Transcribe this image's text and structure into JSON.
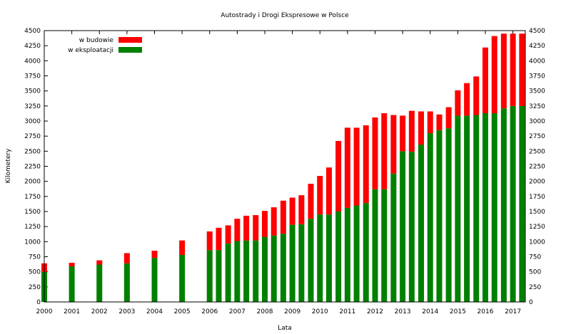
{
  "chart_data": {
    "type": "bar",
    "stacked": true,
    "title": "Autostrady i Drogi Ekspresowe w Polsce",
    "xlabel": "Lata",
    "ylabel": "Kilometery",
    "ylim": [
      0,
      4500
    ],
    "yticks": [
      0,
      250,
      500,
      750,
      1000,
      1250,
      1500,
      1750,
      2000,
      2250,
      2500,
      2750,
      3000,
      3250,
      3500,
      3750,
      4000,
      4250,
      4500
    ],
    "xlim": [
      2000,
      2017.45
    ],
    "xticks": [
      2000,
      2001,
      2002,
      2003,
      2004,
      2005,
      2006,
      2007,
      2008,
      2009,
      2010,
      2011,
      2012,
      2013,
      2014,
      2015,
      2016,
      2017
    ],
    "grid": false,
    "legend_position": "top-left",
    "legend": [
      {
        "name": "w budowie",
        "color": "#ff0000"
      },
      {
        "name": "w eksploatacji",
        "color": "#008000"
      }
    ],
    "x": [
      2000,
      2001,
      2002,
      2003,
      2004,
      2005,
      2006,
      2006.33,
      2006.67,
      2007,
      2007.33,
      2007.67,
      2008,
      2008.33,
      2008.67,
      2009,
      2009.33,
      2009.67,
      2010,
      2010.33,
      2010.67,
      2011,
      2011.33,
      2011.67,
      2012,
      2012.33,
      2012.67,
      2013,
      2013.33,
      2013.67,
      2014,
      2014.33,
      2014.67,
      2015,
      2015.33,
      2015.67,
      2016,
      2016.33,
      2016.67,
      2017,
      2017.33
    ],
    "series": [
      {
        "name": "w eksploatacji",
        "color": "#008000",
        "values": [
          500,
          590,
          620,
          640,
          730,
          780,
          860,
          860,
          970,
          1010,
          1020,
          1020,
          1080,
          1100,
          1130,
          1280,
          1290,
          1380,
          1450,
          1450,
          1500,
          1560,
          1600,
          1640,
          1870,
          1870,
          2130,
          2500,
          2490,
          2610,
          2800,
          2850,
          2880,
          3090,
          3090,
          3100,
          3130,
          3130,
          3210,
          3250,
          3250
        ]
      },
      {
        "name": "w budowie",
        "color": "#ff0000",
        "values": [
          140,
          60,
          70,
          170,
          120,
          240,
          310,
          370,
          300,
          370,
          410,
          420,
          430,
          470,
          550,
          450,
          480,
          580,
          640,
          780,
          1170,
          1330,
          1290,
          1290,
          1190,
          1260,
          970,
          590,
          680,
          550,
          360,
          260,
          350,
          420,
          540,
          640,
          1090,
          1280,
          1240,
          1200,
          1200
        ]
      }
    ]
  }
}
